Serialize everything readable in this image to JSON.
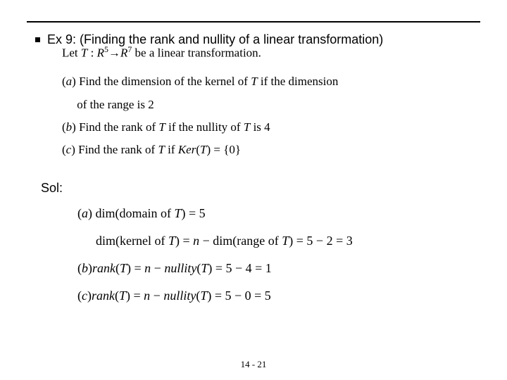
{
  "title": "Ex 9: (Finding the rank and nullity of a linear transformation)",
  "problem": {
    "let_line_html": "Let <span class='it'>T</span> : <span class='it'>R</span><sup>5</sup>→<span class='it'>R</span><sup>7</sup> be a linear transformation.",
    "parts": [
      "(<span class='it'>a</span>) Find the dimension of the kernel of <span class='it'>T</span> if the dimension",
      "&nbsp;&nbsp;&nbsp;&nbsp;&nbsp;of the range is 2",
      "(<span class='it'>b</span>) Find the rank of <span class='it'>T</span> if  the nullity of <span class='it'>T</span> is 4",
      "(<span class='it'>c</span>) Find the rank of <span class='it'>T</span> if  <span class='it'>Ker</span>(<span class='it'>T</span>) = {0}"
    ]
  },
  "sol_label": "Sol:",
  "solution": [
    "(<span class='it'>a</span>) dim(domain of <span class='it'>T</span>) = 5",
    "<span class='indent'>dim(kernel of <span class='it'>T</span>) = <span class='it'>n</span> − dim(range of <span class='it'>T</span>) = 5 − 2 = 3</span>",
    "(<span class='it'>b</span>)<span class='it'>rank</span>(<span class='it'>T</span>) = <span class='it'>n</span> − <span class='it'>nullity</span>(<span class='it'>T</span>) = 5 − 4 = 1",
    "(<span class='it'>c</span>)<span class='it'>rank</span>(<span class='it'>T</span>) = <span class='it'>n</span> − <span class='it'>nullity</span>(<span class='it'>T</span>) = 5 − 0 = 5"
  ],
  "page_number": "14 - 21",
  "colors": {
    "text": "#000000",
    "background": "#ffffff"
  }
}
